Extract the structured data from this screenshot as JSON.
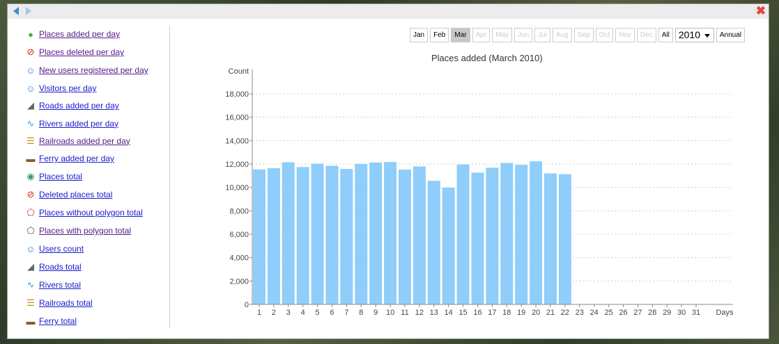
{
  "window": {
    "close_icon": "close-x-icon"
  },
  "sidebar": {
    "items": [
      {
        "label": "Places added per day",
        "icon": "plus-circle-icon",
        "visited": true
      },
      {
        "label": "Places deleted per day",
        "icon": "no-entry-icon",
        "visited": true
      },
      {
        "label": "New users registered per day",
        "icon": "user-icon",
        "visited": true
      },
      {
        "label": "Visitors per day",
        "icon": "user-icon",
        "visited": false
      },
      {
        "label": "Roads added per day",
        "icon": "road-icon",
        "visited": false
      },
      {
        "label": "Rivers added per day",
        "icon": "river-icon",
        "visited": false
      },
      {
        "label": "Railroads added per day",
        "icon": "railroad-icon",
        "visited": true
      },
      {
        "label": "Ferry added per day",
        "icon": "ferry-icon",
        "visited": false
      },
      {
        "label": "Places total",
        "icon": "globe-check-icon",
        "visited": false
      },
      {
        "label": "Deleted places total",
        "icon": "no-entry-icon",
        "visited": false
      },
      {
        "label": "Places without polygon total",
        "icon": "polygon-x-icon",
        "visited": false
      },
      {
        "label": "Places with polygon total",
        "icon": "polygon-icon",
        "visited": true
      },
      {
        "label": "Users count",
        "icon": "user-icon",
        "visited": false
      },
      {
        "label": "Roads total",
        "icon": "road-icon",
        "visited": false
      },
      {
        "label": "Rivers total",
        "icon": "river-icon",
        "visited": false
      },
      {
        "label": "Railroads total",
        "icon": "railroad-icon",
        "visited": false
      },
      {
        "label": "Ferry total",
        "icon": "ferry-icon",
        "visited": false
      }
    ]
  },
  "toolbar": {
    "months": [
      {
        "label": "Jan",
        "state": "enabled"
      },
      {
        "label": "Feb",
        "state": "enabled"
      },
      {
        "label": "Mar",
        "state": "selected"
      },
      {
        "label": "Apr",
        "state": "disabled"
      },
      {
        "label": "May",
        "state": "disabled"
      },
      {
        "label": "Jun",
        "state": "disabled"
      },
      {
        "label": "Jul",
        "state": "disabled"
      },
      {
        "label": "Aug",
        "state": "disabled"
      },
      {
        "label": "Sep",
        "state": "disabled"
      },
      {
        "label": "Oct",
        "state": "disabled"
      },
      {
        "label": "Nov",
        "state": "disabled"
      },
      {
        "label": "Dec",
        "state": "disabled"
      }
    ],
    "all_label": "All",
    "year": "2010",
    "annual_label": "Annual"
  },
  "chart_data": {
    "type": "bar",
    "title": "Places added (March 2010)",
    "ylabel": "Count",
    "xlabel": "Days",
    "ylim": [
      0,
      19000
    ],
    "yticks": [
      0,
      2000,
      4000,
      6000,
      8000,
      10000,
      12000,
      14000,
      16000,
      18000
    ],
    "ytick_labels": [
      "0",
      "2,000",
      "4,000",
      "6,000",
      "8,000",
      "10,000",
      "12,000",
      "14,000",
      "16,000",
      "18,000"
    ],
    "categories": [
      "1",
      "2",
      "3",
      "4",
      "5",
      "6",
      "7",
      "8",
      "9",
      "10",
      "11",
      "12",
      "13",
      "14",
      "15",
      "16",
      "17",
      "18",
      "19",
      "20",
      "21",
      "22",
      "23",
      "24",
      "25",
      "26",
      "27",
      "28",
      "29",
      "30",
      "31"
    ],
    "values": [
      11570,
      11670,
      12180,
      11770,
      12060,
      11880,
      11610,
      12040,
      12160,
      12200,
      11550,
      11820,
      10590,
      10020,
      12000,
      11290,
      11710,
      12120,
      11960,
      12260,
      11230,
      11160,
      null,
      null,
      null,
      null,
      null,
      null,
      null,
      null,
      null
    ],
    "grid": "horizontal-dotted",
    "bar_color": "#8fcdfb"
  }
}
